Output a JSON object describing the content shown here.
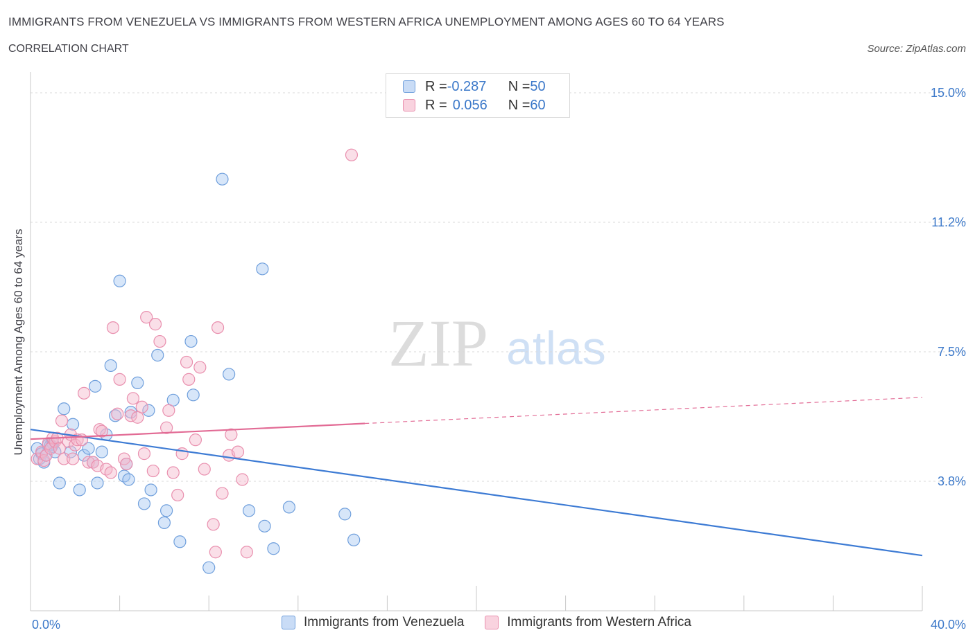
{
  "title": "IMMIGRANTS FROM VENEZUELA VS IMMIGRANTS FROM WESTERN AFRICA UNEMPLOYMENT AMONG AGES 60 TO 64 YEARS",
  "subtitle": "CORRELATION CHART",
  "source": "Source: ZipAtlas.com",
  "watermark": {
    "zip": "ZIP",
    "atlas": "atlas"
  },
  "legend_stats": [
    {
      "r_label": "R = ",
      "r_value": "-0.287",
      "n_label": "N = ",
      "n_value": "50",
      "color": "#a7c8f2"
    },
    {
      "r_label": "R = ",
      "r_value": "0.056",
      "n_label": "N = ",
      "n_value": "60",
      "color": "#f5b8cb"
    }
  ],
  "chart_data": {
    "type": "scatter",
    "ylabel": "Unemployment Among Ages 60 to 64 years",
    "xlim": [
      0,
      40
    ],
    "ylim": [
      0,
      15
    ],
    "y_ticks": [
      {
        "value": 3.75,
        "label": "3.8%"
      },
      {
        "value": 7.5,
        "label": "7.5%"
      },
      {
        "value": 11.25,
        "label": "11.2%"
      },
      {
        "value": 15,
        "label": "15.0%"
      }
    ],
    "x_tick_labels": {
      "min": "0.0%",
      "max": "40.0%"
    },
    "legend_position": "bottom",
    "grid": true,
    "series": [
      {
        "name": "Immigrants from Venezuela",
        "color": "#a7c8f2",
        "stroke": "#6f9fdc",
        "line_color": "#3d7bd4",
        "trend": {
          "x": [
            0,
            40
          ],
          "y": [
            5.25,
            1.6
          ],
          "dashed_from": null
        },
        "points": [
          [
            0.3,
            4.7
          ],
          [
            0.4,
            4.4
          ],
          [
            0.5,
            4.55
          ],
          [
            0.6,
            4.3
          ],
          [
            0.7,
            4.5
          ],
          [
            0.8,
            4.8
          ],
          [
            0.9,
            4.8
          ],
          [
            1.0,
            4.85
          ],
          [
            0.95,
            4.75
          ],
          [
            1.1,
            4.6
          ],
          [
            1.3,
            3.7
          ],
          [
            1.5,
            5.85
          ],
          [
            1.8,
            4.6
          ],
          [
            1.9,
            5.4
          ],
          [
            2.2,
            3.5
          ],
          [
            2.4,
            4.5
          ],
          [
            2.6,
            4.7
          ],
          [
            2.8,
            4.3
          ],
          [
            2.9,
            6.5
          ],
          [
            3.0,
            3.7
          ],
          [
            3.2,
            4.6
          ],
          [
            3.4,
            5.1
          ],
          [
            3.6,
            7.1
          ],
          [
            3.8,
            5.65
          ],
          [
            4.0,
            9.55
          ],
          [
            4.2,
            3.9
          ],
          [
            4.3,
            4.25
          ],
          [
            4.4,
            3.8
          ],
          [
            4.5,
            5.75
          ],
          [
            4.8,
            6.6
          ],
          [
            5.1,
            3.1
          ],
          [
            5.3,
            5.8
          ],
          [
            5.4,
            3.5
          ],
          [
            5.7,
            7.4
          ],
          [
            6.0,
            2.55
          ],
          [
            6.1,
            2.9
          ],
          [
            6.4,
            6.1
          ],
          [
            6.7,
            2.0
          ],
          [
            7.2,
            7.8
          ],
          [
            7.3,
            6.25
          ],
          [
            8.0,
            1.25
          ],
          [
            8.6,
            12.5
          ],
          [
            8.9,
            6.85
          ],
          [
            9.8,
            2.9
          ],
          [
            10.4,
            9.9
          ],
          [
            10.5,
            2.45
          ],
          [
            10.9,
            1.8
          ],
          [
            11.6,
            3.0
          ],
          [
            14.1,
            2.8
          ],
          [
            14.5,
            2.05
          ]
        ]
      },
      {
        "name": "Immigrants from Western Africa",
        "color": "#f5b8cb",
        "stroke": "#e98fae",
        "line_color": "#e26b95",
        "trend": {
          "x": [
            0,
            40
          ],
          "y": [
            4.97,
            6.18
          ],
          "dashed_from": 15
        },
        "points": [
          [
            0.3,
            4.4
          ],
          [
            0.5,
            4.6
          ],
          [
            0.6,
            4.35
          ],
          [
            0.7,
            4.5
          ],
          [
            0.8,
            4.85
          ],
          [
            0.9,
            4.7
          ],
          [
            1.0,
            5.0
          ],
          [
            1.1,
            4.9
          ],
          [
            1.2,
            5.0
          ],
          [
            1.3,
            4.7
          ],
          [
            1.4,
            5.5
          ],
          [
            1.5,
            4.4
          ],
          [
            1.7,
            4.9
          ],
          [
            1.8,
            5.1
          ],
          [
            1.9,
            4.4
          ],
          [
            2.0,
            4.8
          ],
          [
            2.1,
            4.95
          ],
          [
            2.3,
            4.95
          ],
          [
            2.4,
            6.3
          ],
          [
            2.6,
            4.3
          ],
          [
            2.8,
            4.3
          ],
          [
            3.0,
            4.2
          ],
          [
            3.1,
            5.25
          ],
          [
            3.2,
            5.2
          ],
          [
            3.4,
            4.1
          ],
          [
            3.6,
            4.0
          ],
          [
            3.7,
            8.2
          ],
          [
            3.9,
            5.7
          ],
          [
            4.0,
            6.7
          ],
          [
            4.2,
            4.4
          ],
          [
            4.3,
            4.25
          ],
          [
            4.5,
            5.65
          ],
          [
            4.6,
            6.15
          ],
          [
            4.8,
            5.6
          ],
          [
            5.0,
            5.9
          ],
          [
            5.1,
            4.55
          ],
          [
            5.2,
            8.5
          ],
          [
            5.5,
            4.05
          ],
          [
            5.6,
            8.3
          ],
          [
            5.8,
            7.8
          ],
          [
            6.1,
            5.3
          ],
          [
            6.2,
            5.8
          ],
          [
            6.4,
            4.0
          ],
          [
            6.6,
            3.35
          ],
          [
            6.8,
            4.55
          ],
          [
            7.0,
            7.2
          ],
          [
            7.1,
            6.7
          ],
          [
            7.4,
            4.95
          ],
          [
            7.6,
            7.05
          ],
          [
            7.8,
            4.1
          ],
          [
            8.2,
            2.5
          ],
          [
            8.3,
            1.7
          ],
          [
            8.4,
            8.2
          ],
          [
            8.6,
            3.4
          ],
          [
            8.9,
            4.5
          ],
          [
            9.0,
            5.1
          ],
          [
            9.3,
            4.6
          ],
          [
            9.5,
            3.8
          ],
          [
            9.7,
            1.7
          ],
          [
            14.4,
            13.2
          ]
        ]
      }
    ]
  }
}
